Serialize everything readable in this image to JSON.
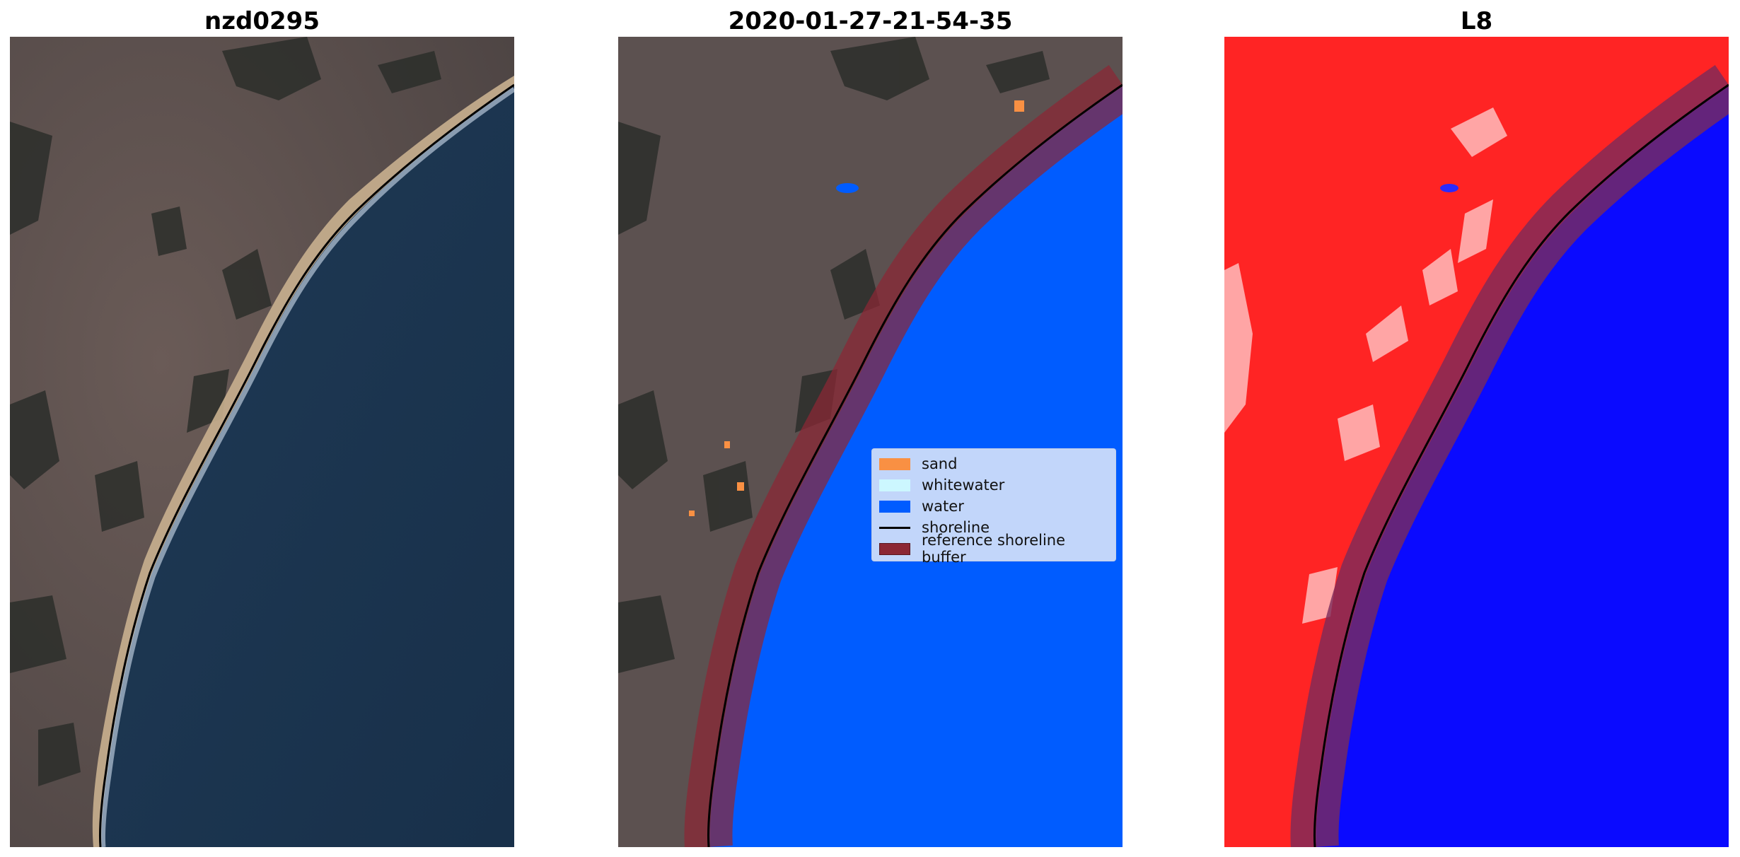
{
  "panels": [
    {
      "title": "nzd0295"
    },
    {
      "title": "2020-01-27-21-54-35"
    },
    {
      "title": "L8"
    }
  ],
  "legend": {
    "items": [
      {
        "label": "sand",
        "color": "#f99043"
      },
      {
        "label": "whitewater",
        "color": "#ccf7ff"
      },
      {
        "label": "water",
        "color": "#005cff"
      },
      {
        "label": "shoreline",
        "color": "#000000"
      },
      {
        "label": "reference shoreline buffer",
        "color": "#8c2734"
      }
    ]
  },
  "colors": {
    "land": "#5d5250",
    "ocean": "#1d3651",
    "sand": "#d8c3a2",
    "classified_water": "#005cff",
    "buffer": "#8c2734",
    "index_land": "#ff2020",
    "index_water": "#0a0aff"
  }
}
